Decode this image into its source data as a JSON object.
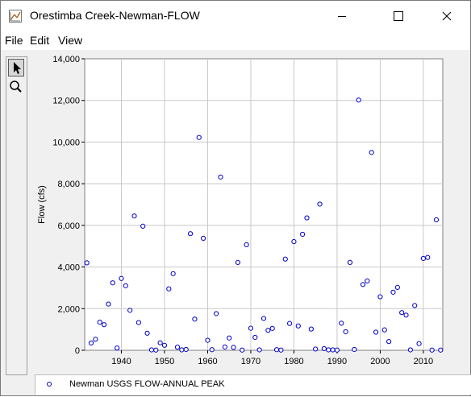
{
  "window": {
    "title": "Orestimba Creek-Newman-FLOW"
  },
  "menu": [
    "File",
    "Edit",
    "View"
  ],
  "toolbar": {
    "tools": [
      "pointer-icon",
      "zoom-icon"
    ],
    "selected": "pointer-icon"
  },
  "colors": {
    "marker": "#0000cc",
    "grid": "#c8c8c8"
  },
  "chart_data": {
    "type": "scatter",
    "ylabel": "Flow (cfs)",
    "xlim": [
      1931.5,
      2014.5
    ],
    "ylim": [
      0,
      14000
    ],
    "x_ticks": [
      "1940",
      "1950",
      "1960",
      "1970",
      "1980",
      "1990",
      "2000",
      "2010"
    ],
    "y_ticks": [
      "0",
      "2,000",
      "4,000",
      "6,000",
      "8,000",
      "10,000",
      "12,000",
      "14,000"
    ],
    "grid": true,
    "legend_position": "bottom",
    "series": [
      {
        "name": "Newman USGS FLOW-ANNUAL PEAK",
        "marker": "open-circle",
        "points": [
          [
            1932,
            4200
          ],
          [
            1933,
            350
          ],
          [
            1934,
            530
          ],
          [
            1935,
            1350
          ],
          [
            1936,
            1230
          ],
          [
            1937,
            2220
          ],
          [
            1938,
            3240
          ],
          [
            1939,
            110
          ],
          [
            1940,
            3450
          ],
          [
            1941,
            3100
          ],
          [
            1942,
            1920
          ],
          [
            1943,
            6450
          ],
          [
            1944,
            1330
          ],
          [
            1945,
            5960
          ],
          [
            1946,
            820
          ],
          [
            1947,
            20
          ],
          [
            1948,
            10
          ],
          [
            1949,
            360
          ],
          [
            1950,
            240
          ],
          [
            1951,
            2950
          ],
          [
            1952,
            3680
          ],
          [
            1953,
            150
          ],
          [
            1954,
            20
          ],
          [
            1955,
            40
          ],
          [
            1956,
            5600
          ],
          [
            1957,
            1500
          ],
          [
            1958,
            10220
          ],
          [
            1959,
            5380
          ],
          [
            1960,
            480
          ],
          [
            1961,
            30
          ],
          [
            1962,
            1760
          ],
          [
            1963,
            8320
          ],
          [
            1964,
            160
          ],
          [
            1965,
            590
          ],
          [
            1966,
            140
          ],
          [
            1967,
            4220
          ],
          [
            1968,
            10
          ],
          [
            1969,
            5070
          ],
          [
            1970,
            1060
          ],
          [
            1971,
            620
          ],
          [
            1972,
            20
          ],
          [
            1973,
            1530
          ],
          [
            1974,
            960
          ],
          [
            1975,
            1050
          ],
          [
            1976,
            30
          ],
          [
            1977,
            10
          ],
          [
            1978,
            4380
          ],
          [
            1979,
            1290
          ],
          [
            1980,
            5220
          ],
          [
            1981,
            1170
          ],
          [
            1982,
            5570
          ],
          [
            1983,
            6360
          ],
          [
            1984,
            1020
          ],
          [
            1985,
            60
          ],
          [
            1986,
            7020
          ],
          [
            1987,
            80
          ],
          [
            1988,
            20
          ],
          [
            1989,
            20
          ],
          [
            1990,
            10
          ],
          [
            1991,
            1300
          ],
          [
            1992,
            890
          ],
          [
            1993,
            4220
          ],
          [
            1994,
            40
          ],
          [
            1995,
            12020
          ],
          [
            1996,
            3160
          ],
          [
            1997,
            3330
          ],
          [
            1998,
            9500
          ],
          [
            1999,
            870
          ],
          [
            2000,
            2570
          ],
          [
            2001,
            980
          ],
          [
            2002,
            420
          ],
          [
            2003,
            2790
          ],
          [
            2004,
            3020
          ],
          [
            2005,
            1810
          ],
          [
            2006,
            1690
          ],
          [
            2007,
            20
          ],
          [
            2008,
            2150
          ],
          [
            2009,
            320
          ],
          [
            2010,
            4410
          ],
          [
            2011,
            4460
          ],
          [
            2012,
            10
          ],
          [
            2013,
            6270
          ],
          [
            2014,
            10
          ]
        ]
      }
    ]
  }
}
